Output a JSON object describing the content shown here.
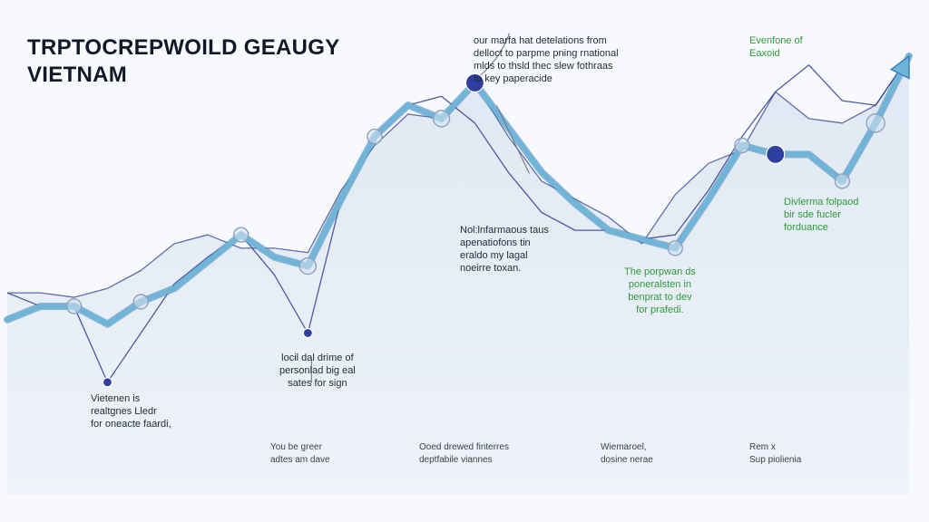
{
  "title_line1": "TRPTOCREPWOILD GEAUGY",
  "title_line2": "VIETNAM",
  "colors": {
    "main_line": "#6fb5d8",
    "main_line_edge": "#3f7fb8",
    "thin_line": "#32408f",
    "fill": "#dfe8f3",
    "dot": "#2f3fa0",
    "annotation_green": "#2e9a3a"
  },
  "annotations": [
    {
      "id": "top-center",
      "text": "our marfa hat detelations from\ndelloct to parpme pning rnational\nmlds to thsld thec slew fothraas\nto key paperacide"
    },
    {
      "id": "top-right",
      "text": "Evenfone of\nEaxoid"
    },
    {
      "id": "mid-center",
      "text": "Nol:lnfarmaous taus\napenatiofons tin\neraldo my lagal\nnoeirre toxan."
    },
    {
      "id": "right-green",
      "text": "Divlerma folpaod\nbir sde fucler\nforduance"
    },
    {
      "id": "mid-green",
      "text": "The porpwan ds\nponeralsten in\nbenprat to dev\nfor prafedi."
    },
    {
      "id": "mid-left",
      "text": "locil dal drime of\npersonlad big eal\nsates for sign"
    },
    {
      "id": "bottom-left",
      "text": "Vietenen is\nrealtgnes Lledr\nfor oneacte faardi,"
    }
  ],
  "bottom_labels": [
    "You be greer\nadtes am dave",
    "Ooed drewed finterres\ndeptfabile viannes",
    "Wiemaroel,\ndosine nerae",
    "Rem x\nSup piolienia"
  ],
  "chart_data": {
    "type": "line",
    "title": "TRPTOCREPWOILD GEAUGY VIETNAM",
    "xlabel": "",
    "ylabel": "",
    "x": [
      0,
      1,
      2,
      3,
      4,
      5,
      6,
      7,
      8,
      9,
      10,
      11,
      12,
      13,
      14,
      15,
      16,
      17,
      18,
      19,
      20,
      21,
      22,
      23,
      24,
      25,
      26,
      27
    ],
    "xlim": [
      0,
      27
    ],
    "ylim": [
      0,
      10
    ],
    "grid": false,
    "legend": "none",
    "series": [
      {
        "values": [
          3.9,
          4.2,
          4.2,
          3.8,
          4.3,
          4.6,
          5.2,
          5.8,
          5.3,
          5.1,
          6.6,
          8.0,
          8.7,
          8.4,
          9.2,
          8.2,
          7.2,
          6.5,
          5.9,
          5.7,
          5.5,
          6.6,
          7.8,
          7.6,
          7.6,
          7.0,
          8.3,
          9.8
        ]
      },
      {
        "values": [
          4.5,
          4.5,
          4.4,
          4.6,
          5.0,
          5.6,
          5.8,
          5.5,
          5.5,
          5.4,
          6.8,
          7.8,
          8.5,
          8.4,
          9.2,
          8.0,
          7.0,
          6.6,
          6.2,
          5.6,
          6.7,
          7.4,
          7.7,
          9.0,
          8.4,
          8.3,
          8.7,
          9.8
        ]
      },
      {
        "values": [
          4.5,
          4.2,
          4.2,
          2.5,
          3.6,
          4.7,
          5.3,
          5.8,
          4.9,
          3.6,
          6.6,
          8.0,
          8.7,
          8.9,
          8.3,
          7.2,
          6.3,
          5.9,
          5.9,
          5.7,
          5.8,
          6.8,
          8.0,
          9.0,
          9.6,
          8.8,
          8.7,
          9.8
        ]
      }
    ],
    "markers": [
      {
        "series": 0,
        "index": 2,
        "size": 8,
        "fill": "none"
      },
      {
        "series": 0,
        "index": 4,
        "size": 8,
        "fill": "none"
      },
      {
        "series": 0,
        "index": 7,
        "size": 8,
        "fill": "none"
      },
      {
        "series": 0,
        "index": 9,
        "size": 9,
        "fill": "none"
      },
      {
        "series": 0,
        "index": 11,
        "size": 8,
        "fill": "none"
      },
      {
        "series": 0,
        "index": 13,
        "size": 9,
        "fill": "none"
      },
      {
        "series": 0,
        "index": 20,
        "size": 8,
        "fill": "none"
      },
      {
        "series": 0,
        "index": 22,
        "size": 8,
        "fill": "none"
      },
      {
        "series": 0,
        "index": 25,
        "size": 8,
        "fill": "none"
      },
      {
        "series": 0,
        "index": 26,
        "size": 10,
        "fill": "none"
      },
      {
        "series": 2,
        "index": 3,
        "size": 5,
        "fill": "solid"
      },
      {
        "series": 2,
        "index": 9,
        "size": 5,
        "fill": "solid"
      },
      {
        "series": 0,
        "index": 14,
        "size": 10,
        "fill": "solid"
      },
      {
        "series": 0,
        "index": 23,
        "size": 10,
        "fill": "solid"
      }
    ]
  }
}
